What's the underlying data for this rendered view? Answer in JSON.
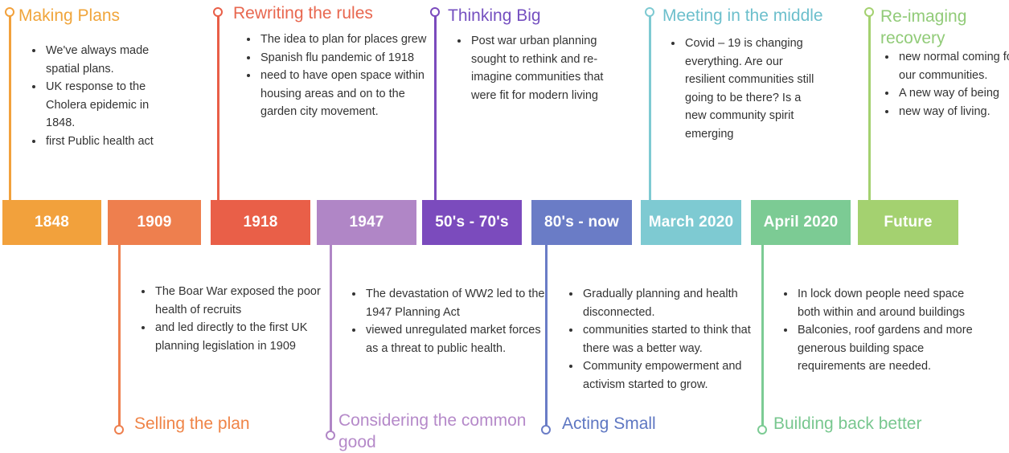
{
  "colors": {
    "c1848": "#f2a13c",
    "c1909": "#ee7f4e",
    "c1918": "#e95f48",
    "c1947": "#b086c6",
    "c50s": "#7b4bbd",
    "c80s": "#6a7cc6",
    "cmar": "#7ecad2",
    "capr": "#7ccb94",
    "cfut": "#a4d170",
    "t1848": "#f0a53b",
    "t1909": "#ef8447",
    "t1918": "#e8674f",
    "t1947": "#b589c9",
    "t50s": "#7550c0",
    "t80s": "#5e77c2",
    "tmar": "#6cbfcc",
    "tapr": "#78c78f",
    "tfut": "#91cb78"
  },
  "timeline": [
    {
      "label": "1848",
      "title": "Making Plans",
      "bullets": [
        "We've always made spatial plans.",
        "UK response to the Cholera epidemic in 1848.",
        "first Public health act"
      ]
    },
    {
      "label": "1909",
      "title": "Selling the plan",
      "bullets": [
        "The Boar War exposed the poor health of recruits",
        " and led directly to the first UK planning legislation in 1909"
      ]
    },
    {
      "label": "1918",
      "title": "Rewriting the rules",
      "bullets": [
        "The idea to plan for places grew",
        " Spanish flu pandemic of 1918",
        "need to have open space within housing areas and on to the garden city movement."
      ]
    },
    {
      "label": "1947",
      "title": "Considering the common good",
      "bullets": [
        "The devastation of WW2 led to the 1947 Planning Act",
        " viewed unregulated market forces as a threat to public health."
      ]
    },
    {
      "label": "50's - 70's",
      "title": "Thinking Big",
      "bullets": [
        "Post war urban planning sought to rethink and re-imagine communities that were fit for modern living"
      ]
    },
    {
      "label": "80's - now",
      "title": "Acting Small",
      "bullets": [
        "Gradually planning and health disconnected.",
        "communities started to think that there was a better way.",
        "Community empowerment and activism started to grow."
      ]
    },
    {
      "label": "March 2020",
      "title": "Meeting in the middle",
      "bullets": [
        "Covid – 19 is changing everything. Are our resilient communities still going to be there? Is a new community spirit emerging"
      ]
    },
    {
      "label": "April 2020",
      "title": "Building back better",
      "bullets": [
        "In lock down people need space both within and around buildings",
        " Balconies, roof gardens and more generous building space requirements are needed."
      ]
    },
    {
      "label": "Future",
      "title": "Re-imaging recovery",
      "bullets": [
        "new normal coming for our communities.",
        " A new way of being",
        "new way of living."
      ]
    }
  ]
}
